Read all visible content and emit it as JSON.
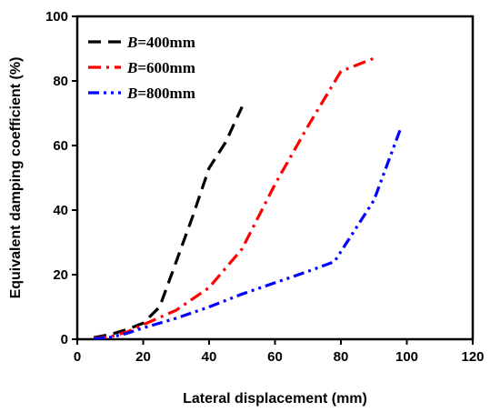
{
  "chart_data": {
    "type": "line",
    "xlabel": "Lateral displacement (mm)",
    "ylabel": "Equivalent damping coefficient (%)",
    "xlim": [
      0,
      120
    ],
    "ylim": [
      0,
      100
    ],
    "xticks": [
      0,
      20,
      40,
      60,
      80,
      100,
      120
    ],
    "yticks": [
      0,
      20,
      40,
      60,
      80,
      100
    ],
    "grid": false,
    "legend_position": "top-left",
    "series": [
      {
        "name_var": "B",
        "name_rest": "=400mm",
        "color": "#000000",
        "dash": "dash",
        "x": [
          5,
          10,
          15,
          20,
          25,
          30,
          35,
          40,
          45,
          50
        ],
        "y": [
          0.5,
          1.5,
          3,
          5,
          10,
          24,
          38,
          53,
          61,
          72
        ]
      },
      {
        "name_var": "B",
        "name_rest": "=600mm",
        "color": "#ff0000",
        "dash": "dashdot",
        "x": [
          5,
          10,
          15,
          20,
          30,
          40,
          50,
          60,
          70,
          80,
          90
        ],
        "y": [
          0.3,
          0.8,
          2.2,
          4.5,
          9,
          16,
          28,
          48,
          66,
          83,
          87
        ]
      },
      {
        "name_var": "B",
        "name_rest": "=800mm",
        "color": "#0000ff",
        "dash": "dashdotdot",
        "x": [
          5,
          10,
          15,
          20,
          30,
          40,
          50,
          60,
          70,
          78,
          90,
          98
        ],
        "y": [
          0.2,
          0.6,
          1.8,
          3.5,
          6.5,
          10,
          14,
          17.5,
          21,
          24,
          43,
          65
        ]
      }
    ]
  }
}
